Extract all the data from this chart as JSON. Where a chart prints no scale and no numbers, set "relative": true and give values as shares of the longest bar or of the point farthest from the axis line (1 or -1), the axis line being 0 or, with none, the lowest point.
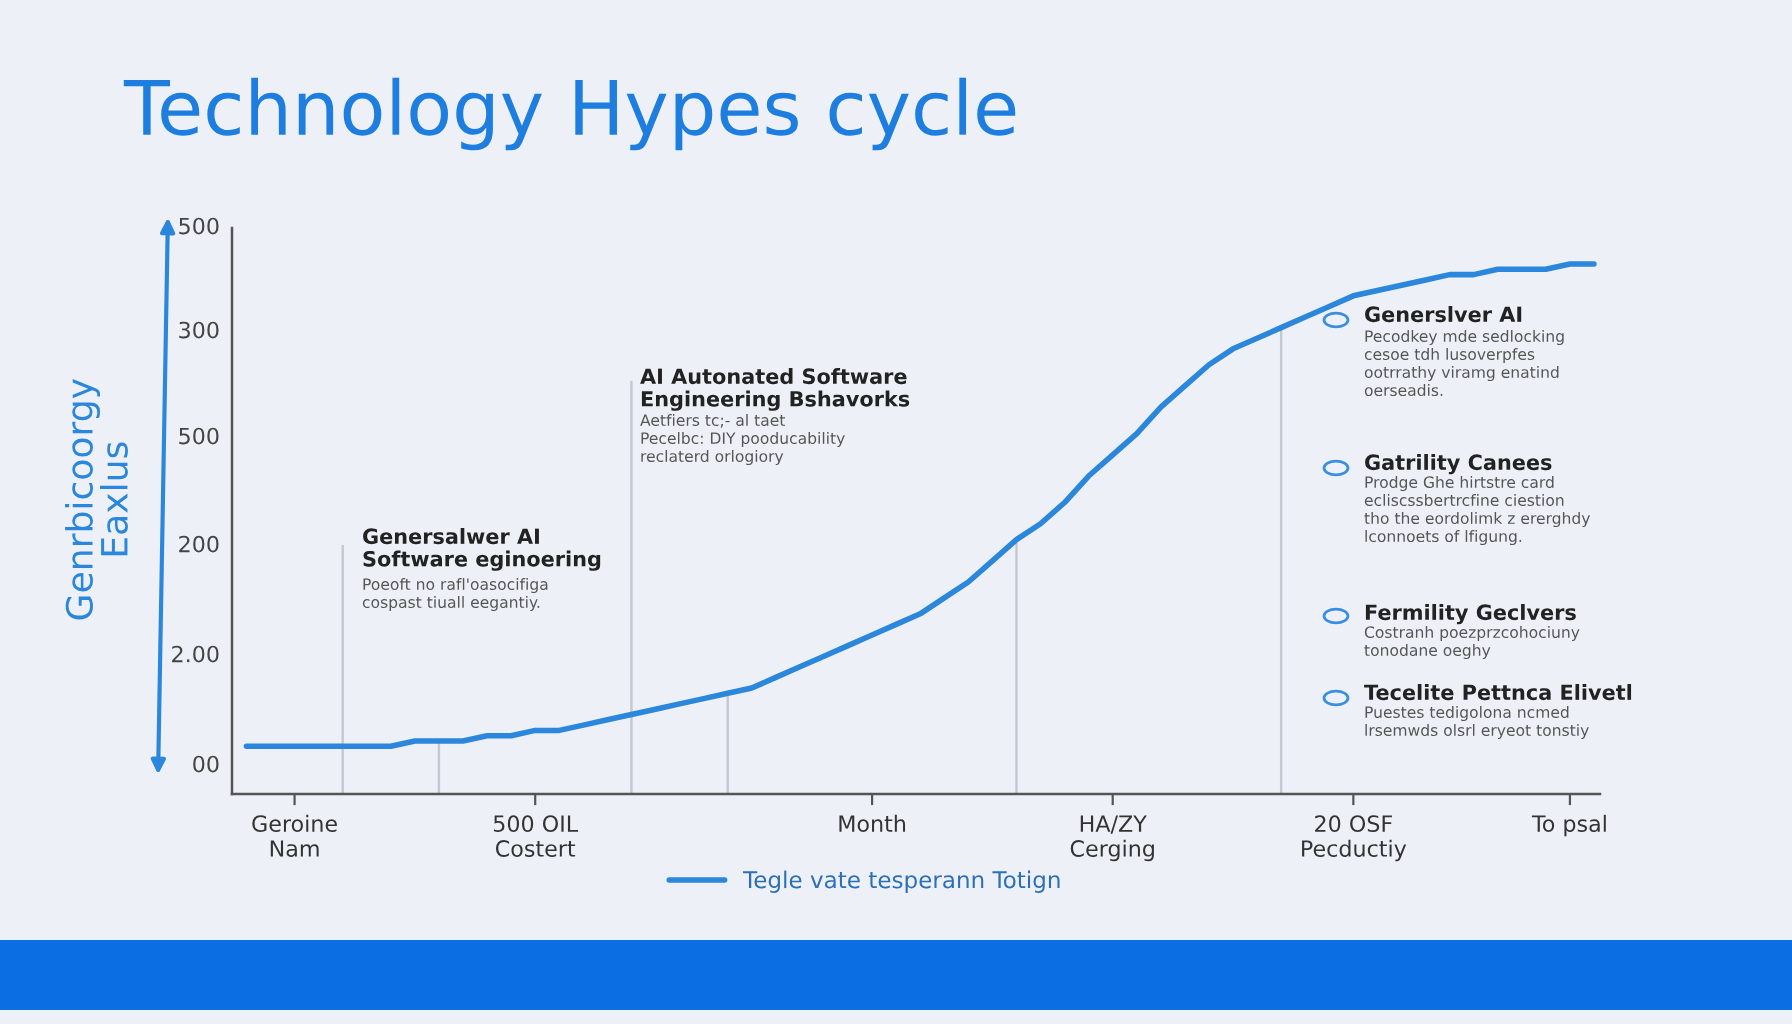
{
  "chart_data": {
    "type": "line",
    "title": "Technology Hypes cycle",
    "ylabel": "Genrbicoorgy\nEaxlus",
    "relative": true,
    "categories": [
      null,
      null,
      "Geroine\nNam",
      null,
      null,
      null,
      null,
      null,
      null,
      null,
      null,
      null,
      "500 OIL\nCostert",
      null,
      null,
      null,
      null,
      null,
      null,
      null,
      null,
      null,
      null,
      null,
      null,
      null,
      "Month",
      null,
      null,
      null,
      null,
      null,
      null,
      null,
      null,
      null,
      "HA/ZY\nCerging",
      null,
      null,
      null,
      null,
      null,
      null,
      null,
      null,
      null,
      "20 OSF\nPecductiy",
      null,
      null,
      null,
      null,
      null,
      null,
      null,
      null,
      "To psal",
      null
    ],
    "series": [
      {
        "name": "Tegle vate tesperann Totign",
        "color": "#2b87dc",
        "values": [
          0.09,
          0.09,
          0.09,
          0.09,
          0.09,
          0.09,
          0.09,
          0.1,
          0.1,
          0.1,
          0.11,
          0.11,
          0.12,
          0.12,
          0.13,
          0.14,
          0.15,
          0.16,
          0.17,
          0.18,
          0.19,
          0.2,
          0.22,
          0.24,
          0.26,
          0.28,
          0.3,
          0.32,
          0.34,
          0.37,
          0.4,
          0.44,
          0.48,
          0.51,
          0.55,
          0.6,
          0.64,
          0.68,
          0.73,
          0.77,
          0.81,
          0.84,
          0.86,
          0.88,
          0.9,
          0.92,
          0.94,
          0.95,
          0.96,
          0.97,
          0.98,
          0.98,
          0.99,
          0.99,
          0.99,
          1.0,
          1.0
        ]
      },
      {
        "type": "bar",
        "color": "#c4c9d1",
        "values": [
          null,
          null,
          null,
          null,
          0.47,
          null,
          null,
          null,
          0.1,
          null,
          null,
          null,
          null,
          null,
          null,
          null,
          0.78,
          null,
          null,
          null,
          0.19,
          null,
          null,
          null,
          null,
          null,
          null,
          null,
          null,
          null,
          null,
          null,
          0.48,
          null,
          null,
          null,
          null,
          null,
          null,
          null,
          null,
          null,
          null,
          0.88,
          null,
          null,
          null,
          null,
          null,
          null,
          null,
          null,
          null,
          null,
          null,
          null,
          null
        ]
      }
    ],
    "annotations": [
      "Genersalwer AI\nSoftware eginoering",
      "Poeoft no rafl'oasocifiga\ncospast tiuall eegantiy.",
      "AI Autonated Software\nEngineering Bshavorks",
      "Aetfiers tc;- al taet\nPecelbc: DIY pooducability\nreclaterd orlogiory",
      "Generslver AI",
      "Pecodkey mde sedlocking\ncesoe tdh lusoverpfes\nootrrathy viramg enatind\noerseadis.",
      "Gatrility Canees",
      "Prodge Ghe hirtstre card\necliscssbertrcfine ciestion\ntho the eordolimk z ererghdy\nlconnoets of lfigung.",
      "Fermility Geclvers",
      "Costranh poezprzcohociuny\ntonodane oeghy",
      "Tecelite Pettnca Elivetl",
      "Puestes tedigolona ncmed\nlrsemwds olsrl eryeot tonstiy",
      "500",
      "300",
      "500",
      "200",
      "2.00",
      "00"
    ],
    "legend": "bottom",
    "marker": "none",
    "line_style": "solid"
  }
}
